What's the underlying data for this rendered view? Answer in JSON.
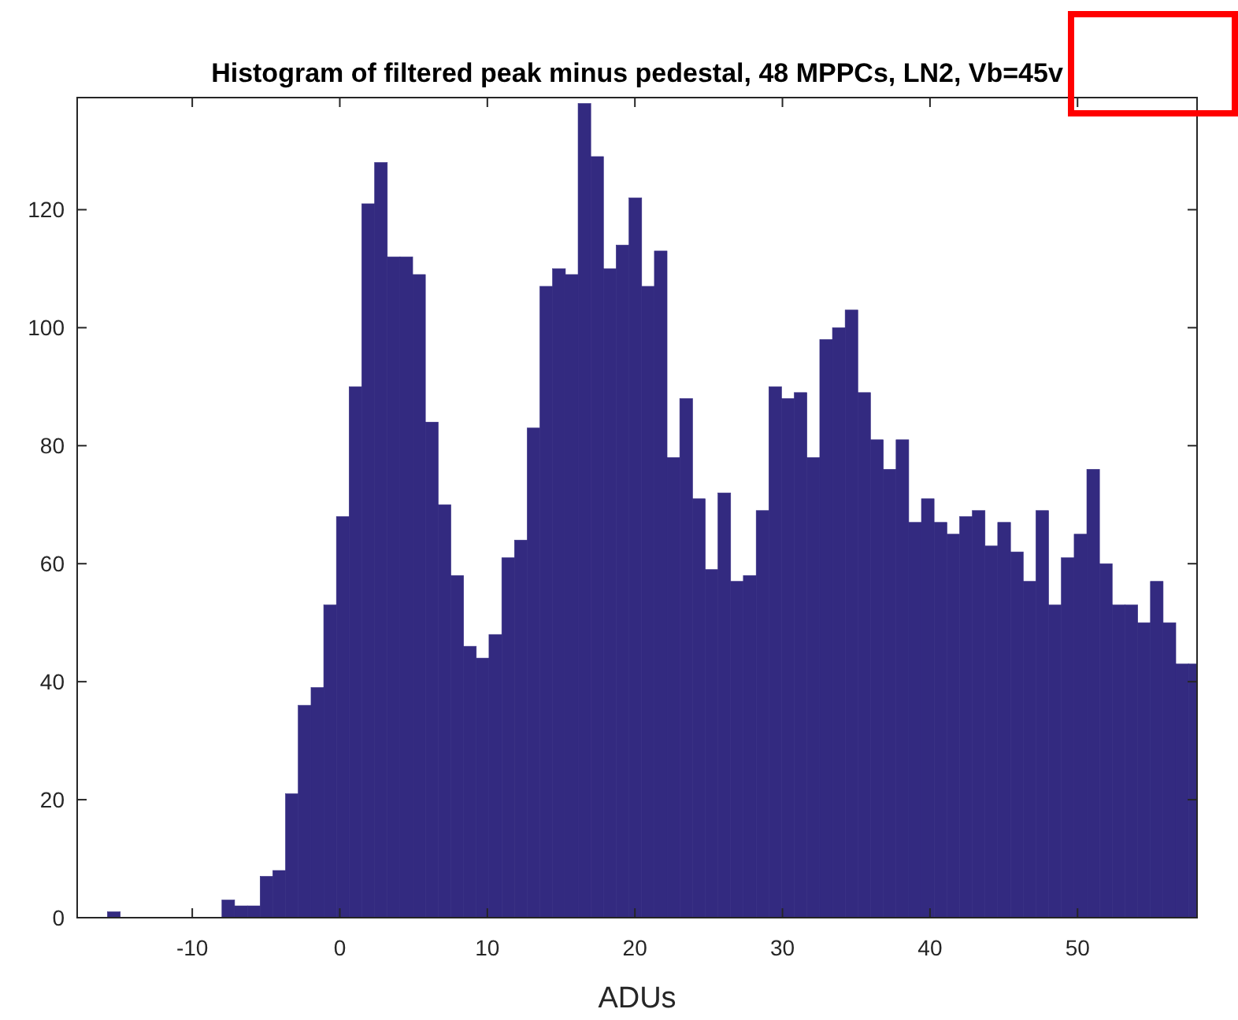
{
  "chart_data": {
    "type": "histogram",
    "title": "Histogram of filtered peak minus pedestal, 48 MPPCs, LN2, Vb=45v",
    "xlabel": "ADUs",
    "bins": [
      -15.75,
      -14.88,
      -7.99,
      -7.13,
      -6.26,
      -5.4,
      -4.54,
      -3.68,
      -2.82,
      -1.95,
      -1.09,
      -0.23,
      0.63,
      1.49,
      2.36,
      3.22,
      4.08,
      4.94,
      5.8,
      6.67,
      7.53,
      8.39,
      9.25,
      10.11,
      10.98,
      11.84,
      12.7,
      13.56,
      14.42,
      15.29,
      16.15,
      17.01,
      17.87,
      18.73,
      19.6,
      20.46,
      21.32,
      22.18,
      23.04,
      23.91,
      24.77,
      25.63,
      26.49,
      27.35,
      28.22,
      29.08,
      29.94,
      30.8,
      31.66,
      32.53,
      33.39,
      34.25,
      35.11,
      35.97,
      36.84,
      37.7,
      38.56,
      39.42,
      40.28,
      41.15,
      42.01,
      42.87,
      43.73,
      44.59,
      45.46,
      46.32,
      47.18,
      48.04,
      48.9,
      49.77,
      50.63,
      51.49,
      52.35,
      53.21,
      54.08,
      54.94,
      55.8,
      56.66,
      57.52,
      58.1
    ],
    "values": [
      1,
      0,
      3,
      2,
      2,
      7,
      8,
      21,
      36,
      39,
      53,
      68,
      90,
      121,
      128,
      112,
      112,
      109,
      84,
      70,
      58,
      46,
      44,
      48,
      61,
      64,
      83,
      107,
      110,
      109,
      138,
      129,
      110,
      114,
      122,
      107,
      113,
      78,
      88,
      71,
      59,
      72,
      57,
      58,
      69,
      90,
      88,
      89,
      78,
      98,
      100,
      103,
      89,
      81,
      76,
      81,
      67,
      71,
      67,
      65,
      68,
      69,
      63,
      67,
      62,
      57,
      69,
      53,
      61,
      65,
      76,
      60,
      53,
      53,
      50,
      57,
      50,
      43,
      43
    ],
    "color": "#332a80",
    "xlim": [
      -17.8,
      58.1
    ],
    "ylim": [
      0,
      139
    ],
    "xticks": [
      -10,
      0,
      10,
      20,
      30,
      40,
      50
    ],
    "yticks": [
      0,
      20,
      40,
      60,
      80,
      100,
      120
    ],
    "grid": false
  }
}
